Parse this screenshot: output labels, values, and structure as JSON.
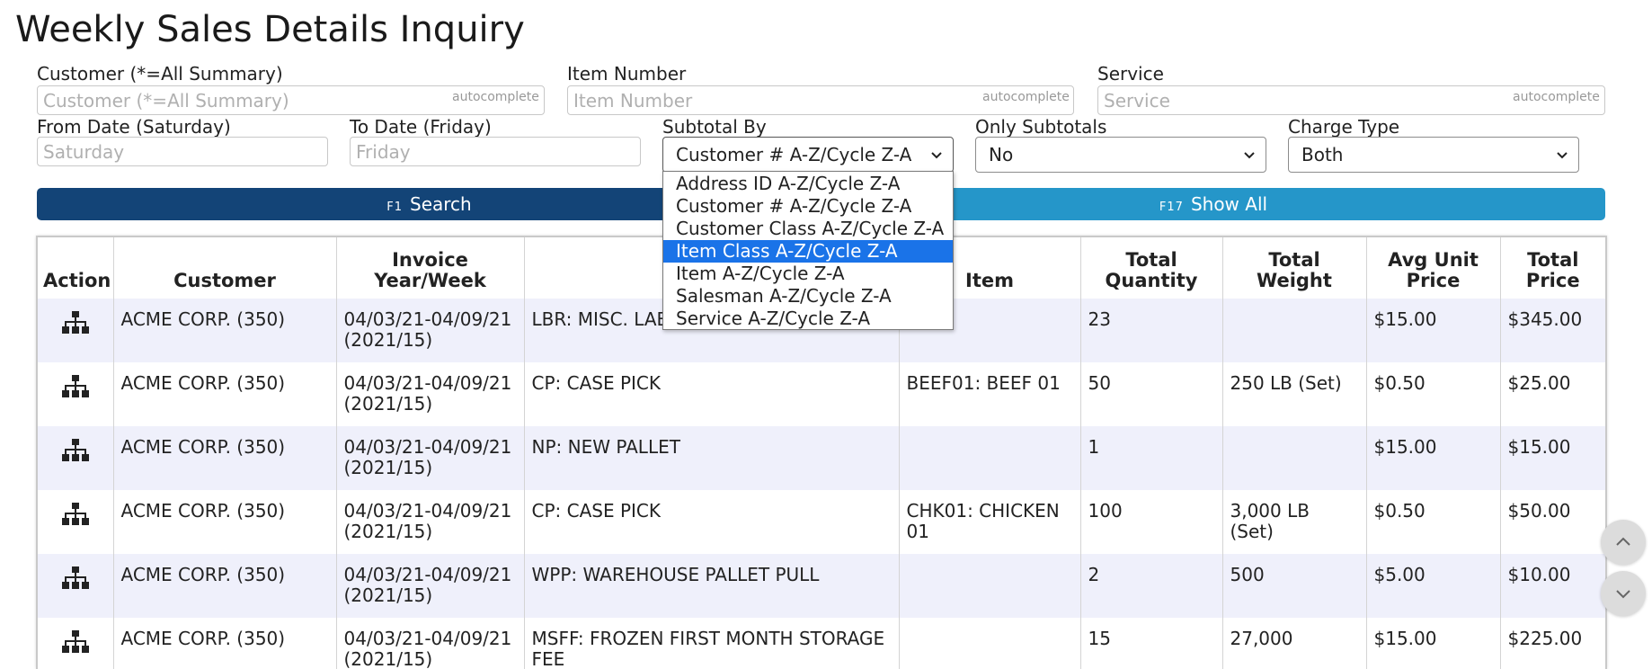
{
  "page": {
    "title": "Weekly Sales Details Inquiry"
  },
  "filters": {
    "customer": {
      "label": "Customer (*=All Summary)",
      "placeholder": "Customer (*=All Summary)",
      "value": "",
      "tag": "autocomplete"
    },
    "item_number": {
      "label": "Item Number",
      "placeholder": "Item Number",
      "value": "",
      "tag": "autocomplete"
    },
    "service": {
      "label": "Service",
      "placeholder": "Service",
      "value": "",
      "tag": "autocomplete"
    },
    "from_date": {
      "label": "From Date (Saturday)",
      "placeholder": "Saturday",
      "value": ""
    },
    "to_date": {
      "label": "To Date (Friday)",
      "placeholder": "Friday",
      "value": ""
    },
    "subtotal_by": {
      "label": "Subtotal By",
      "value": "Customer # A-Z/Cycle Z-A",
      "options": [
        "Address ID A-Z/Cycle Z-A",
        "Customer # A-Z/Cycle Z-A",
        "Customer Class A-Z/Cycle Z-A",
        "Item Class A-Z/Cycle Z-A",
        "Item A-Z/Cycle Z-A",
        "Salesman A-Z/Cycle Z-A",
        "Service A-Z/Cycle Z-A"
      ],
      "highlighted_option": "Item Class A-Z/Cycle Z-A"
    },
    "only_subtotals": {
      "label": "Only Subtotals",
      "value": "No"
    },
    "charge_type": {
      "label": "Charge Type",
      "value": "Both"
    }
  },
  "buttons": {
    "search": {
      "key": "F1",
      "label": "Search"
    },
    "show_all": {
      "key": "F17",
      "label": "Show All"
    }
  },
  "table": {
    "headers": {
      "action": "Action",
      "customer": "Customer",
      "invoice_year_week_1": "Invoice",
      "invoice_year_week_2": "Year/Week",
      "service": "",
      "item": "Item",
      "total_quantity_1": "Total",
      "total_quantity_2": "Quantity",
      "total_weight": "Total Weight",
      "avg_unit_price_1": "Avg Unit",
      "avg_unit_price_2": "Price",
      "total_price_1": "Total",
      "total_price_2": "Price"
    },
    "action_icon": "hierarchy-icon",
    "rows": [
      {
        "customer": "ACME CORP. (350)",
        "week": "04/03/21-04/09/21",
        "year_week": "(2021/15)",
        "service": "LBR: MISC. LABOR",
        "item": "",
        "quantity": "23",
        "weight": "",
        "avg_price": "$15.00",
        "total_price": "$345.00"
      },
      {
        "customer": "ACME CORP. (350)",
        "week": "04/03/21-04/09/21",
        "year_week": "(2021/15)",
        "service": "CP: CASE PICK",
        "item": "BEEF01: BEEF 01",
        "quantity": "50",
        "weight": "250 LB (Set)",
        "avg_price": "$0.50",
        "total_price": "$25.00"
      },
      {
        "customer": "ACME CORP. (350)",
        "week": "04/03/21-04/09/21",
        "year_week": "(2021/15)",
        "service": "NP: NEW PALLET",
        "item": "",
        "quantity": "1",
        "weight": "",
        "avg_price": "$15.00",
        "total_price": "$15.00"
      },
      {
        "customer": "ACME CORP. (350)",
        "week": "04/03/21-04/09/21",
        "year_week": "(2021/15)",
        "service": "CP: CASE PICK",
        "item": "CHK01: CHICKEN 01",
        "quantity": "100",
        "weight": "3,000 LB (Set)",
        "avg_price": "$0.50",
        "total_price": "$50.00"
      },
      {
        "customer": "ACME CORP. (350)",
        "week": "04/03/21-04/09/21",
        "year_week": "(2021/15)",
        "service": "WPP: WAREHOUSE PALLET PULL",
        "item": "",
        "quantity": "2",
        "weight": "500",
        "avg_price": "$5.00",
        "total_price": "$10.00"
      },
      {
        "customer": "ACME CORP. (350)",
        "week": "04/03/21-04/09/21",
        "year_week": "(2021/15)",
        "service": "MSFF: FROZEN FIRST MONTH STORAGE FEE",
        "item": "",
        "quantity": "15",
        "weight": "27,000",
        "avg_price": "$15.00",
        "total_price": "$225.00"
      }
    ]
  },
  "scroll": {
    "up_icon": "chevron-up-icon",
    "down_icon": "chevron-down-icon"
  }
}
